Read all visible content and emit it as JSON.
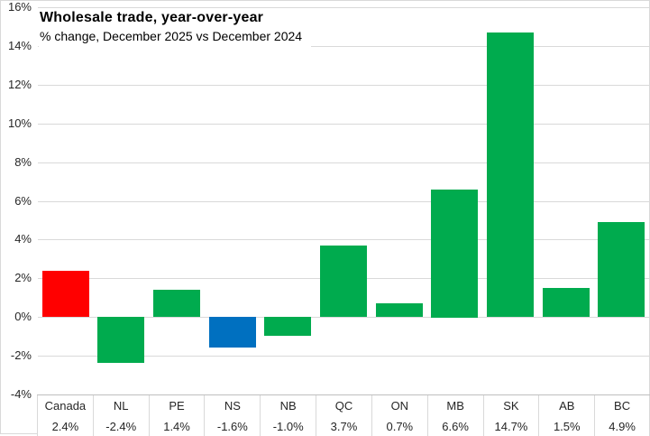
{
  "chart_data": {
    "type": "bar",
    "title": "Wholesale trade, year-over-year",
    "subtitle": "% change, December 2025 vs December 2024",
    "categories": [
      "Canada",
      "NL",
      "PE",
      "NS",
      "NB",
      "QC",
      "ON",
      "MB",
      "SK",
      "AB",
      "BC"
    ],
    "values": [
      2.4,
      -2.4,
      1.4,
      -1.6,
      -1.0,
      3.7,
      0.7,
      6.6,
      14.7,
      1.5,
      4.9
    ],
    "value_labels": [
      "2.4%",
      "-2.4%",
      "1.4%",
      "-1.6%",
      "-1.0%",
      "3.7%",
      "0.7%",
      "6.6%",
      "14.7%",
      "1.5%",
      "4.9%"
    ],
    "bar_colors": [
      "#ff0000",
      "#00ab4e",
      "#00ab4e",
      "#0070c0",
      "#00ab4e",
      "#00ab4e",
      "#00ab4e",
      "#00ab4e",
      "#00ab4e",
      "#00ab4e",
      "#00ab4e"
    ],
    "color_legend": {
      "canada_accent": "#ff0000",
      "default_province": "#00ab4e",
      "nova_scotia_accent": "#0070c0"
    },
    "ylim": [
      -4,
      16
    ],
    "ytick_step": 2,
    "ytick_labels": [
      "16%",
      "14%",
      "12%",
      "10%",
      "8%",
      "6%",
      "4%",
      "2%",
      "0%",
      "-2%",
      "-4%"
    ],
    "grid": true,
    "gridline_color": "#d9d9d9",
    "legend_position": "none",
    "xlabel": "",
    "ylabel": ""
  }
}
